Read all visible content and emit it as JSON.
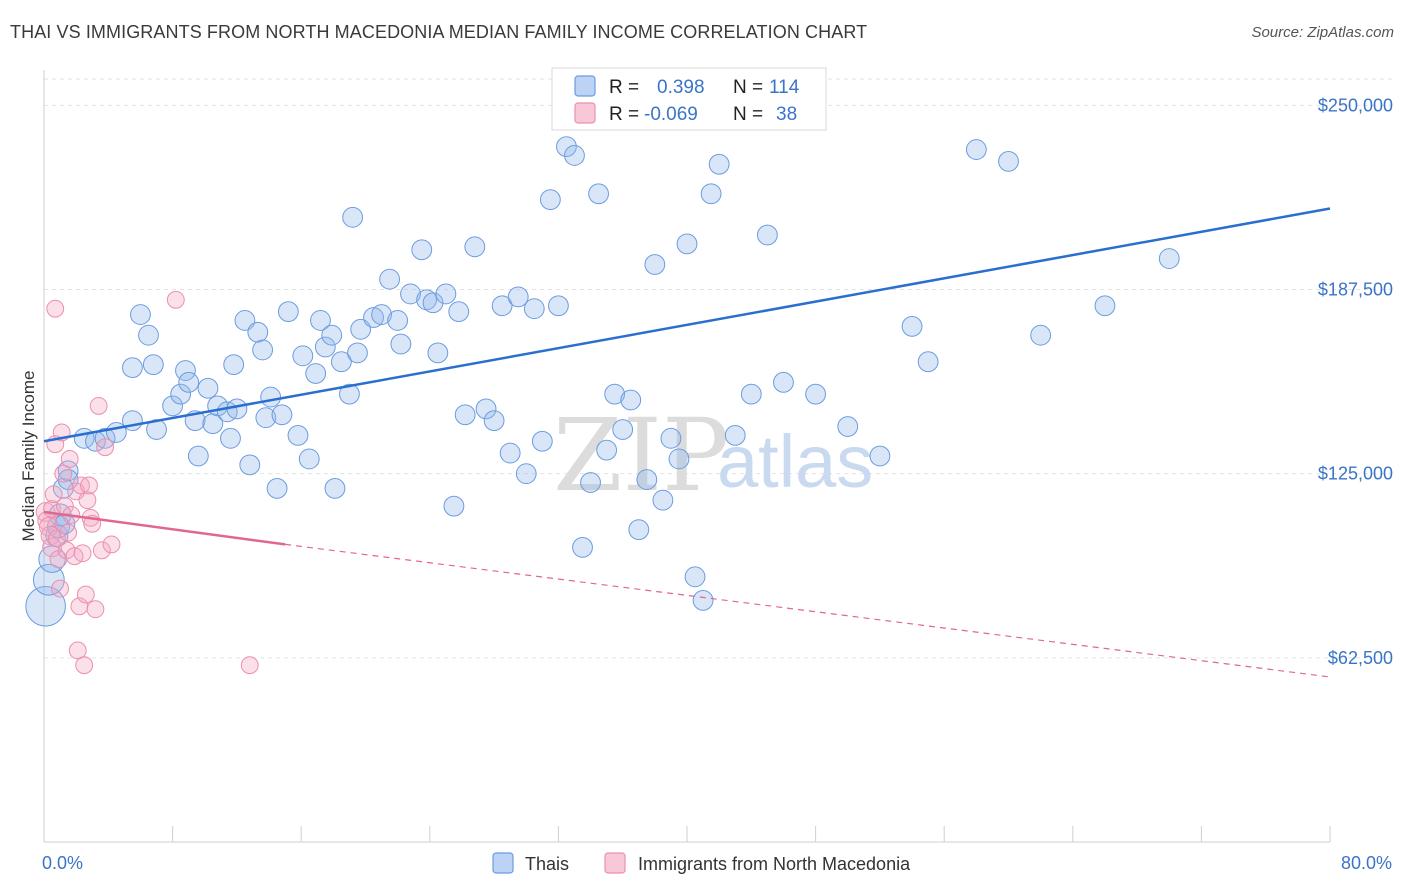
{
  "header": {
    "title": "THAI VS IMMIGRANTS FROM NORTH MACEDONIA MEDIAN FAMILY INCOME CORRELATION CHART",
    "source": "Source: ZipAtlas.com"
  },
  "watermark": {
    "zip": "ZIP",
    "atlas": "atlas"
  },
  "stats": [
    {
      "r_label": "R =",
      "r_value": "0.398",
      "n_label": "N =",
      "n_value": "114",
      "color": "#6b9be0"
    },
    {
      "r_label": "R =",
      "r_value": "-0.069",
      "n_label": "N =",
      "n_value": "38",
      "color": "#ec8fad"
    }
  ],
  "colors": {
    "thais": "#6b9be0",
    "macedonia": "#ec8fad",
    "thais_line": "#2a6fd0",
    "macedonia_line": "#e0688e",
    "accent_text": "#3a74c9"
  },
  "chart_data": {
    "type": "scatter",
    "title": "THAI VS IMMIGRANTS FROM NORTH MACEDONIA MEDIAN FAMILY INCOME CORRELATION CHART",
    "xlabel": "",
    "ylabel": "Median Family Income",
    "xlim": [
      0,
      80
    ],
    "ylim": [
      0,
      262000
    ],
    "x_tick_labels": [
      "0.0%",
      "80.0%"
    ],
    "y_ticks": [
      62500,
      125000,
      187500,
      250000
    ],
    "y_tick_labels": [
      "$62,500",
      "$125,000",
      "$187,500",
      "$250,000"
    ],
    "grid": true,
    "legend_position": "bottom",
    "series": [
      {
        "name": "Thais",
        "trend": {
          "x": [
            0,
            80
          ],
          "y": [
            136000,
            215000
          ],
          "style": "solid"
        },
        "points": [
          [
            0.1,
            80000,
            1.8
          ],
          [
            0.3,
            89000,
            1.4
          ],
          [
            0.5,
            96000,
            1.2
          ],
          [
            0.8,
            104000,
            1.0
          ],
          [
            1.0,
            111000,
            1.0
          ],
          [
            0.9,
            107000,
            1.0
          ],
          [
            1.2,
            120000,
            0.9
          ],
          [
            1.3,
            108000,
            0.9
          ],
          [
            1.5,
            126000,
            0.9
          ],
          [
            1.5,
            123000,
            0.9
          ],
          [
            2.5,
            137000,
            0.9
          ],
          [
            3.2,
            136000,
            0.9
          ],
          [
            3.8,
            137000,
            0.9
          ],
          [
            4.5,
            139000,
            0.9
          ],
          [
            5.5,
            143000,
            0.9
          ],
          [
            5.5,
            161000,
            0.9
          ],
          [
            6.5,
            172000,
            0.9
          ],
          [
            6.0,
            179000,
            0.9
          ],
          [
            6.8,
            162000,
            0.9
          ],
          [
            7.0,
            140000,
            0.9
          ],
          [
            8.0,
            148000,
            0.9
          ],
          [
            8.5,
            152000,
            0.9
          ],
          [
            8.8,
            160000,
            0.9
          ],
          [
            9.0,
            156000,
            0.9
          ],
          [
            9.4,
            143000,
            0.9
          ],
          [
            9.6,
            131000,
            0.9
          ],
          [
            10.2,
            154000,
            0.9
          ],
          [
            10.5,
            142000,
            0.9
          ],
          [
            10.8,
            148000,
            0.9
          ],
          [
            11.4,
            146000,
            0.9
          ],
          [
            11.6,
            137000,
            0.9
          ],
          [
            11.8,
            162000,
            0.9
          ],
          [
            12.0,
            147000,
            0.9
          ],
          [
            12.5,
            177000,
            0.9
          ],
          [
            12.8,
            128000,
            0.9
          ],
          [
            13.3,
            173000,
            0.9
          ],
          [
            13.6,
            167000,
            0.9
          ],
          [
            13.8,
            144000,
            0.9
          ],
          [
            14.1,
            151000,
            0.9
          ],
          [
            14.5,
            120000,
            0.9
          ],
          [
            14.8,
            145000,
            0.9
          ],
          [
            15.2,
            180000,
            0.9
          ],
          [
            15.8,
            138000,
            0.9
          ],
          [
            16.1,
            165000,
            0.9
          ],
          [
            16.5,
            130000,
            0.9
          ],
          [
            16.9,
            159000,
            0.9
          ],
          [
            17.2,
            177000,
            0.9
          ],
          [
            17.5,
            168000,
            0.9
          ],
          [
            17.9,
            172000,
            0.9
          ],
          [
            18.1,
            120000,
            0.9
          ],
          [
            18.5,
            163000,
            0.9
          ],
          [
            19.0,
            152000,
            0.9
          ],
          [
            19.2,
            212000,
            0.9
          ],
          [
            19.5,
            166000,
            0.9
          ],
          [
            19.7,
            174000,
            0.9
          ],
          [
            20.5,
            178000,
            0.9
          ],
          [
            21.0,
            179000,
            0.9
          ],
          [
            21.5,
            191000,
            0.9
          ],
          [
            22.0,
            177000,
            0.9
          ],
          [
            22.2,
            169000,
            0.9
          ],
          [
            22.8,
            186000,
            0.9
          ],
          [
            23.5,
            201000,
            0.9
          ],
          [
            23.8,
            184000,
            0.9
          ],
          [
            24.2,
            183000,
            0.9
          ],
          [
            24.5,
            166000,
            0.9
          ],
          [
            25.0,
            186000,
            0.9
          ],
          [
            25.5,
            114000,
            0.9
          ],
          [
            25.8,
            180000,
            0.9
          ],
          [
            26.2,
            145000,
            0.9
          ],
          [
            26.8,
            202000,
            0.9
          ],
          [
            27.5,
            147000,
            0.9
          ],
          [
            28.0,
            143000,
            0.9
          ],
          [
            28.5,
            182000,
            0.9
          ],
          [
            29.0,
            132000,
            0.9
          ],
          [
            29.5,
            185000,
            0.9
          ],
          [
            30.0,
            125000,
            0.9
          ],
          [
            30.5,
            181000,
            0.9
          ],
          [
            31.0,
            136000,
            0.9
          ],
          [
            31.5,
            218000,
            0.9
          ],
          [
            32.0,
            182000,
            0.9
          ],
          [
            32.5,
            236000,
            0.9
          ],
          [
            33.0,
            233000,
            0.9
          ],
          [
            33.5,
            100000,
            0.9
          ],
          [
            34.0,
            122000,
            0.9
          ],
          [
            34.5,
            220000,
            0.9
          ],
          [
            35.0,
            133000,
            0.9
          ],
          [
            35.5,
            152000,
            0.9
          ],
          [
            36.0,
            140000,
            0.9
          ],
          [
            36.5,
            150000,
            0.9
          ],
          [
            37.0,
            106000,
            0.9
          ],
          [
            37.5,
            123000,
            0.9
          ],
          [
            38.0,
            196000,
            0.9
          ],
          [
            38.5,
            116000,
            0.9
          ],
          [
            39.0,
            137000,
            0.9
          ],
          [
            39.5,
            130000,
            0.9
          ],
          [
            40.0,
            203000,
            0.9
          ],
          [
            40.5,
            90000,
            0.9
          ],
          [
            41.0,
            82000,
            0.9
          ],
          [
            41.5,
            220000,
            0.9
          ],
          [
            42.0,
            230000,
            0.9
          ],
          [
            43.0,
            138000,
            0.9
          ],
          [
            44.0,
            152000,
            0.9
          ],
          [
            45.0,
            206000,
            0.9
          ],
          [
            46.0,
            156000,
            0.9
          ],
          [
            48.0,
            152000,
            0.9
          ],
          [
            50.0,
            141000,
            0.9
          ],
          [
            52.0,
            131000,
            0.9
          ],
          [
            54.0,
            175000,
            0.9
          ],
          [
            55.0,
            163000,
            0.9
          ],
          [
            58.0,
            235000,
            0.9
          ],
          [
            60.0,
            231000,
            0.9
          ],
          [
            62.0,
            172000,
            0.9
          ],
          [
            66.0,
            182000,
            0.9
          ],
          [
            70.0,
            198000,
            0.9
          ]
        ]
      },
      {
        "name": "Immigrants from North Macedonia",
        "trend": {
          "x": [
            0,
            15
          ],
          "y": [
            112000,
            101000
          ],
          "dashed_to": [
            80,
            56000
          ]
        },
        "points": [
          [
            0.1,
            112000,
            1.0
          ],
          [
            0.2,
            109000,
            1.0
          ],
          [
            0.3,
            107000,
            1.0
          ],
          [
            0.4,
            104000,
            1.0
          ],
          [
            0.5,
            100000,
            1.0
          ],
          [
            0.5,
            113000,
            0.9
          ],
          [
            0.6,
            118000,
            0.9
          ],
          [
            0.7,
            135000,
            0.9
          ],
          [
            0.8,
            103000,
            0.9
          ],
          [
            0.9,
            96000,
            0.9
          ],
          [
            0.7,
            181000,
            0.9
          ],
          [
            1.0,
            86000,
            0.9
          ],
          [
            1.1,
            139000,
            0.9
          ],
          [
            1.2,
            125000,
            0.9
          ],
          [
            1.3,
            114000,
            0.9
          ],
          [
            1.4,
            99000,
            0.9
          ],
          [
            1.5,
            105000,
            0.9
          ],
          [
            1.6,
            130000,
            0.9
          ],
          [
            1.7,
            111000,
            0.9
          ],
          [
            1.9,
            97000,
            0.9
          ],
          [
            2.0,
            119000,
            0.9
          ],
          [
            2.1,
            65000,
            0.9
          ],
          [
            2.2,
            80000,
            0.9
          ],
          [
            2.3,
            121000,
            0.9
          ],
          [
            2.4,
            98000,
            0.9
          ],
          [
            2.5,
            60000,
            0.9
          ],
          [
            2.6,
            84000,
            0.9
          ],
          [
            2.7,
            116000,
            0.9
          ],
          [
            2.8,
            121000,
            0.9
          ],
          [
            2.9,
            110000,
            0.9
          ],
          [
            3.0,
            108000,
            0.9
          ],
          [
            3.2,
            79000,
            0.9
          ],
          [
            3.4,
            148000,
            0.9
          ],
          [
            3.6,
            99000,
            0.9
          ],
          [
            3.8,
            134000,
            0.9
          ],
          [
            4.2,
            101000,
            0.9
          ],
          [
            8.2,
            184000,
            0.9
          ],
          [
            12.8,
            60000,
            0.9
          ]
        ]
      }
    ]
  }
}
